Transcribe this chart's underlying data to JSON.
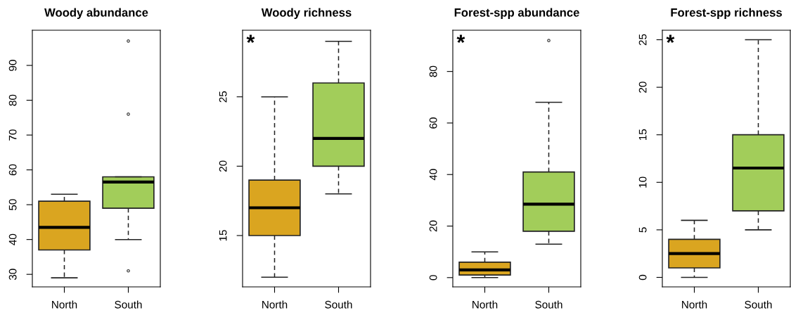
{
  "chart_data": [
    {
      "type": "box",
      "title": "Woody abundance",
      "categories": [
        "North",
        "South"
      ],
      "colors": [
        "#daa520",
        "#a2cd5a"
      ],
      "ylim": [
        26.4,
        100.1
      ],
      "yticks": [
        30,
        40,
        50,
        60,
        70,
        80,
        90
      ],
      "grid": false,
      "boxes": [
        {
          "low": 29,
          "q1": 37,
          "median": 43.5,
          "q3": 51,
          "high": 53
        },
        {
          "low": 40,
          "q1": 49,
          "median": 56.5,
          "q3": 58,
          "high": 58,
          "outliers": [
            31,
            76,
            97
          ]
        }
      ]
    },
    {
      "type": "box",
      "title": "Woody richness",
      "categories": [
        "North",
        "South"
      ],
      "colors": [
        "#daa520",
        "#a2cd5a"
      ],
      "ylim": [
        11.3,
        29.8
      ],
      "yticks": [
        15,
        20,
        25
      ],
      "grid": false,
      "annotations": [
        "*"
      ],
      "boxes": [
        {
          "low": 12,
          "q1": 15,
          "median": 17,
          "q3": 19,
          "high": 25
        },
        {
          "low": 18,
          "q1": 20,
          "median": 22,
          "q3": 26,
          "high": 29
        }
      ]
    },
    {
      "type": "box",
      "title": "Forest-spp abundance",
      "categories": [
        "North",
        "South"
      ],
      "colors": [
        "#daa520",
        "#a2cd5a"
      ],
      "ylim": [
        -3.6,
        96
      ],
      "yticks": [
        0,
        20,
        40,
        60,
        80
      ],
      "grid": false,
      "annotations": [
        "*"
      ],
      "boxes": [
        {
          "low": 0,
          "q1": 1,
          "median": 3,
          "q3": 6,
          "high": 10
        },
        {
          "low": 13,
          "q1": 18,
          "median": 28.5,
          "q3": 41,
          "high": 68,
          "outliers": [
            92
          ]
        }
      ]
    },
    {
      "type": "box",
      "title": "Forest-spp richness",
      "categories": [
        "North",
        "South"
      ],
      "colors": [
        "#daa520",
        "#a2cd5a"
      ],
      "ylim": [
        -1,
        26
      ],
      "yticks": [
        0,
        5,
        10,
        15,
        20,
        25
      ],
      "grid": false,
      "annotations": [
        "*"
      ],
      "boxes": [
        {
          "low": 0,
          "q1": 1,
          "median": 2.5,
          "q3": 4,
          "high": 6
        },
        {
          "low": 5,
          "q1": 7,
          "median": 11.5,
          "q3": 15,
          "high": 25
        }
      ]
    }
  ]
}
